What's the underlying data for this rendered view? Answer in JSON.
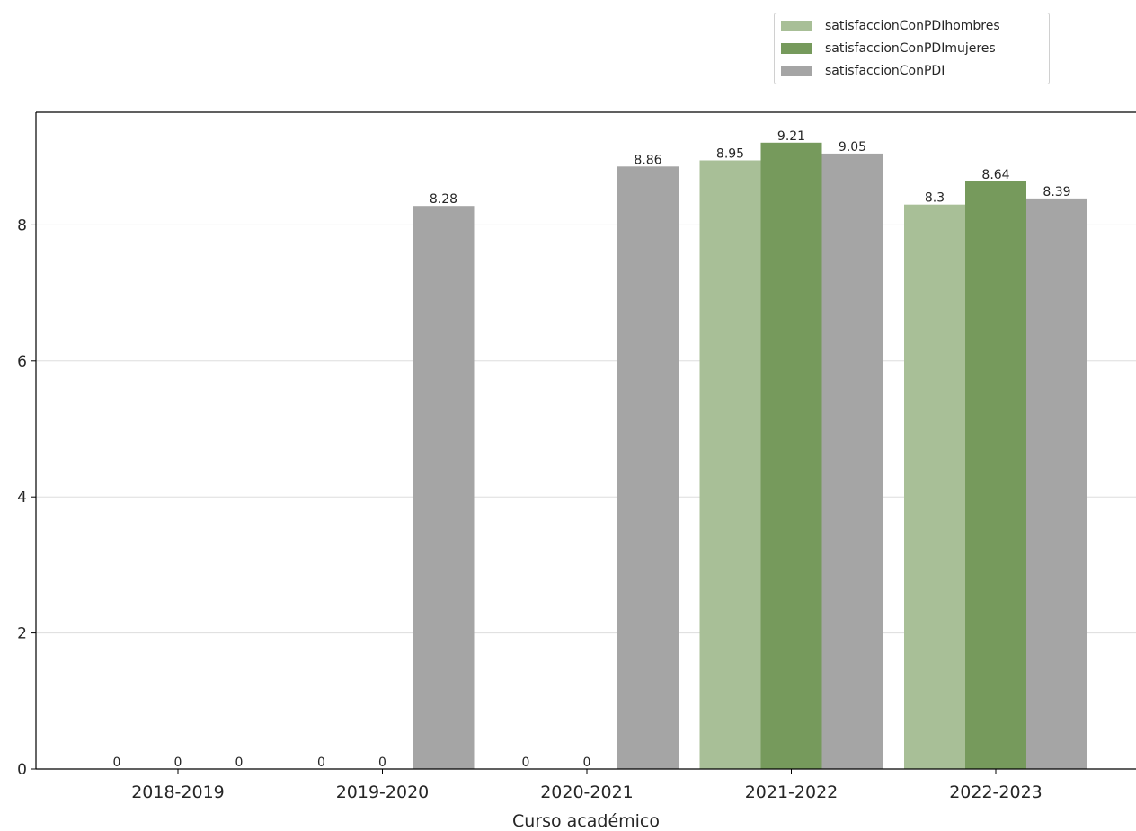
{
  "chart_data": {
    "type": "bar",
    "title": "",
    "xlabel": "Curso académico",
    "ylabel": "",
    "categories": [
      "2018-2019",
      "2019-2020",
      "2020-2021",
      "2021-2022",
      "2022-2023"
    ],
    "series": [
      {
        "name": "satisfaccionConPDIhombres",
        "color": "#a8bf97",
        "values": [
          0,
          0,
          0,
          8.95,
          8.3
        ],
        "labels": [
          "0",
          "0",
          "0",
          "8.95",
          "8.3"
        ]
      },
      {
        "name": "satisfaccionConPDImujeres",
        "color": "#769a5c",
        "values": [
          0,
          0,
          0,
          9.21,
          8.64
        ],
        "labels": [
          "0",
          "0",
          "0",
          "9.21",
          "8.64"
        ]
      },
      {
        "name": "satisfaccionConPDI",
        "color": "#a5a5a5",
        "values": [
          0,
          8.28,
          8.86,
          9.05,
          8.39
        ],
        "labels": [
          "0",
          "8.28",
          "8.86",
          "9.05",
          "8.39"
        ]
      }
    ],
    "yticks": [
      "0",
      "2",
      "4",
      "6",
      "8"
    ],
    "ylim": [
      0,
      9.67
    ],
    "grid": "horizontal",
    "legend_position": "top-right"
  }
}
